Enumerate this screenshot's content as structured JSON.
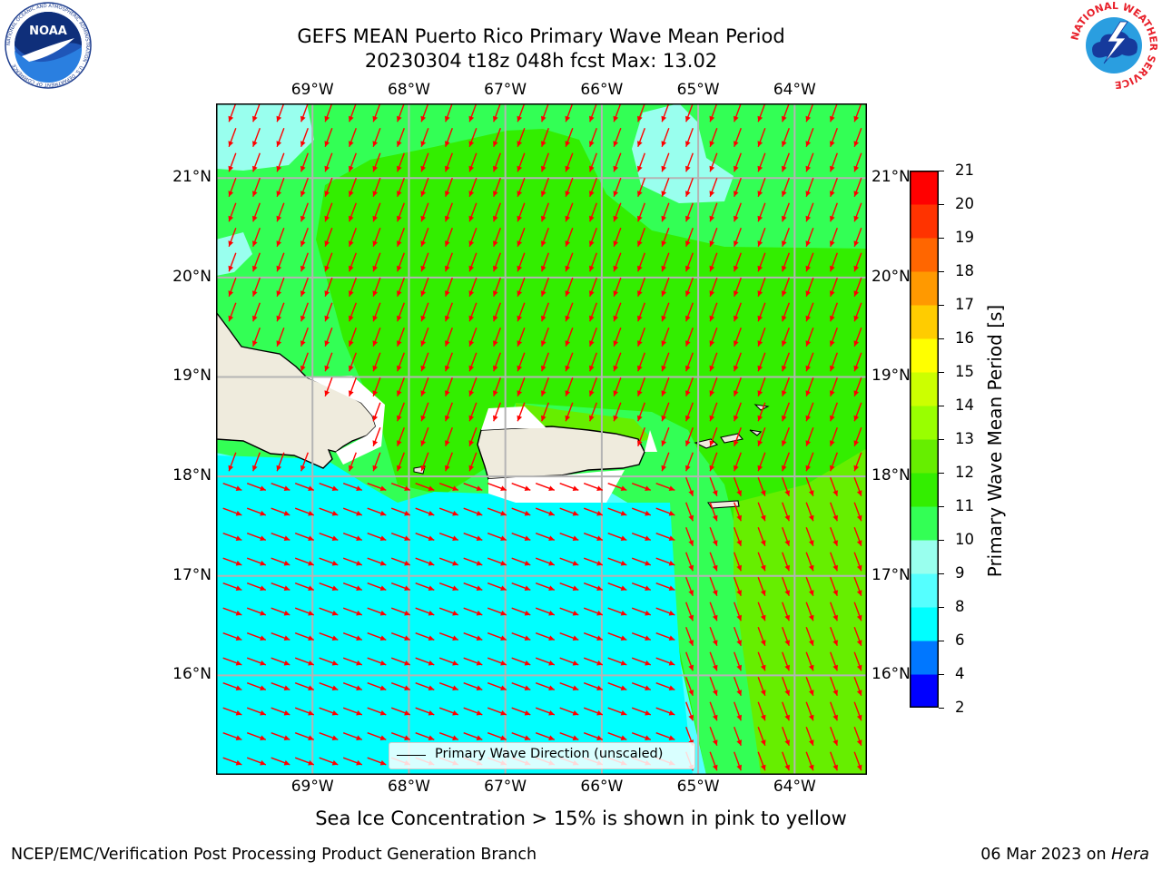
{
  "title": {
    "line1": "GEFS MEAN Puerto Rico Primary Wave Mean Period",
    "line2": "20230304 t18z 048h fcst   Max: 13.02"
  },
  "subtitle": "Sea Ice Concentration > 15% is shown in pink to yellow",
  "footer": {
    "left": "NCEP/EMC/Verification Post Processing Product Generation Branch",
    "date": "06 Mar 2023 on ",
    "host": "Hera"
  },
  "logos": {
    "left": {
      "icon": "noaa-logo",
      "text": "NOAA",
      "ring_text": "NATIONAL OCEANIC AND ATMOSPHERIC ADMINISTRATION · U.S. DEPARTMENT OF COMMERCE"
    },
    "right": {
      "icon": "nws-logo",
      "ring_text": "NATIONAL WEATHER SERVICE"
    }
  },
  "map": {
    "lon_labels": [
      "69°W",
      "68°W",
      "67°W",
      "66°W",
      "65°W",
      "64°W"
    ],
    "lat_labels": [
      "21°N",
      "20°N",
      "19°N",
      "18°N",
      "17°N",
      "16°N"
    ],
    "lon_values": [
      -69,
      -68,
      -67,
      -66,
      -65,
      -64
    ],
    "lat_values": [
      21,
      20,
      19,
      18,
      17,
      16
    ],
    "extent": {
      "lon_min": -70,
      "lon_max": -63.25,
      "lat_min": 15.0,
      "lat_max": 21.75
    },
    "arrow_color": "#ff0000",
    "land_color": "#efebdd",
    "grid_color": "#b4b4b4",
    "legend": "Primary Wave Direction (unscaled)",
    "directions": [
      {
        "region": "north and central open water",
        "bearing_deg": 200
      },
      {
        "region": "Caribbean Sea southwest of Puerto Rico",
        "bearing_deg": 110
      },
      {
        "region": "Caribbean Sea southeast",
        "bearing_deg": 160
      }
    ]
  },
  "colorbar": {
    "label": "Primary Wave Mean Period [s]",
    "ticks": [
      "2",
      "4",
      "6",
      "8",
      "9",
      "10",
      "11",
      "12",
      "13",
      "14",
      "15",
      "16",
      "17",
      "18",
      "19",
      "20",
      "21"
    ],
    "colors": [
      "#0000ff",
      "#0077ff",
      "#00ffff",
      "#55ffff",
      "#99ffee",
      "#33ff55",
      "#33ee00",
      "#66ee00",
      "#99ff00",
      "#ccff00",
      "#ffff00",
      "#ffcc00",
      "#ff9900",
      "#ff6600",
      "#ff3300",
      "#ff0000"
    ]
  }
}
